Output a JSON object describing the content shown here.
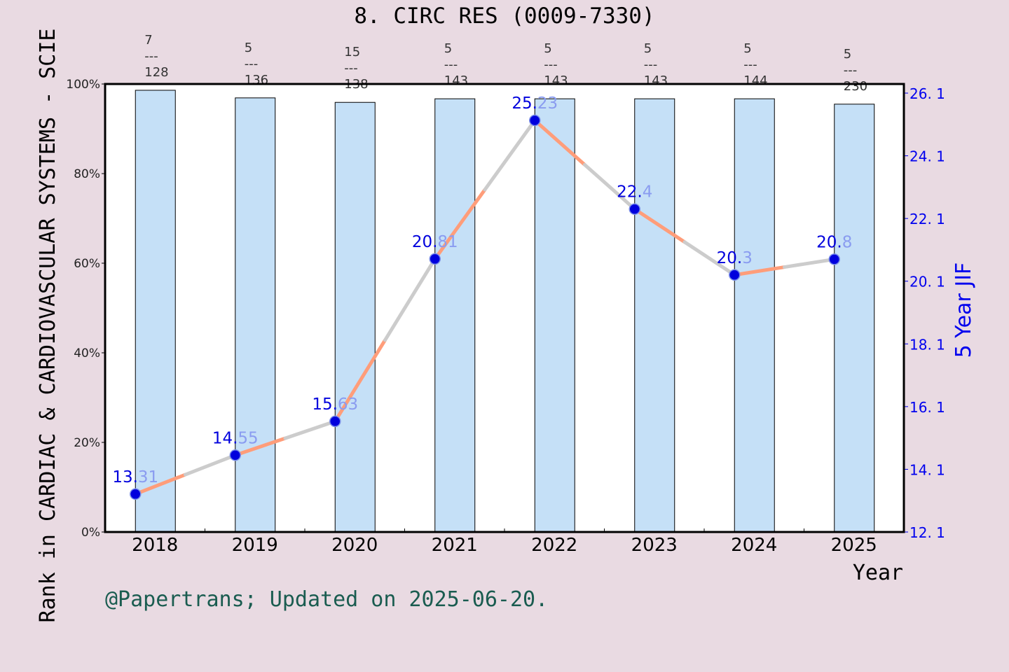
{
  "chart_data": {
    "type": "bar+line",
    "title": "8. CIRC RES (0009-7330)",
    "xlabel": "Year",
    "ylabel_left": "Rank in CARDIAC & CARDIOVASCULAR SYSTEMS - SCIE",
    "ylabel_right": "5 Year JIF",
    "categories": [
      "2018",
      "2019",
      "2020",
      "2021",
      "2022",
      "2023",
      "2024",
      "2025"
    ],
    "left_axis": {
      "ylim": [
        0,
        100
      ],
      "ticks": [
        "0%",
        "20%",
        "40%",
        "60%",
        "80%",
        "100%"
      ]
    },
    "right_axis": {
      "ylim": [
        12.1,
        26.1
      ],
      "ticks": [
        "12.1",
        "14.1",
        "16.1",
        "18.1",
        "20.1",
        "22.1",
        "24.1",
        "26.1"
      ]
    },
    "bars": {
      "values_percent": [
        98.6,
        96.9,
        95.9,
        96.7,
        96.7,
        96.7,
        96.7,
        95.5
      ],
      "rank_labels": [
        {
          "rank": "7",
          "total": "128"
        },
        {
          "rank": "5",
          "total": "136"
        },
        {
          "rank": "15",
          "total": "138"
        },
        {
          "rank": "5",
          "total": "143"
        },
        {
          "rank": "5",
          "total": "143"
        },
        {
          "rank": "5",
          "total": "143"
        },
        {
          "rank": "5",
          "total": "144"
        },
        {
          "rank": "5",
          "total": "230"
        }
      ],
      "separator": "---",
      "color": "#c5e0f7"
    },
    "line": {
      "values": [
        13.31,
        14.55,
        15.63,
        20.81,
        25.23,
        22.4,
        20.3,
        20.8
      ],
      "labels": [
        "13.31",
        "14.55",
        "15.63",
        "20.81",
        "25.23",
        "22.4",
        "20.3",
        "20.8"
      ],
      "color_start": "#ff9d7a",
      "color_end": "#cccccc",
      "marker_color": "#0000dd"
    },
    "grid": false
  },
  "footer": "@Papertrans; Updated on 2025-06-20.",
  "colors": {
    "background": "#e9dae2",
    "right_axis": "#0000ee",
    "footer": "#1a5c50"
  }
}
